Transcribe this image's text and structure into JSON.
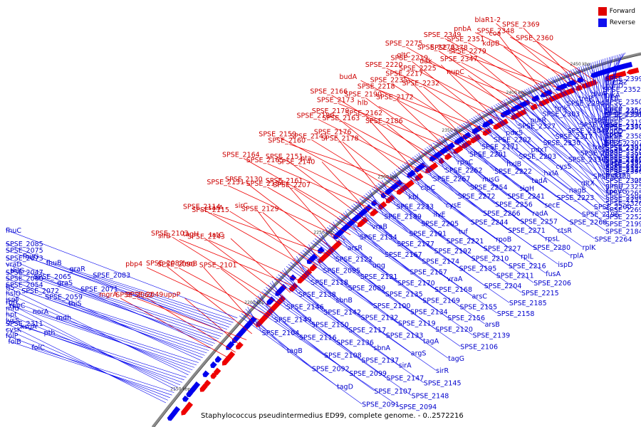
{
  "legend": [
    {
      "label": "Forward",
      "color": "#e00000"
    },
    {
      "label": "Reverse",
      "color": "#1010ee"
    }
  ],
  "caption": "Staphylococcus pseudintermedius ED99, complete genome. - 0..2572216",
  "colors": {
    "forward": "#ee0000",
    "reverse": "#0000ee",
    "backbone": "#888888"
  },
  "ticks": [
    "2150 kbp",
    "2200 kbp",
    "2250 kbp",
    "2300 kbp",
    "2350 kbp",
    "2400 kbp",
    "2450 kbp"
  ],
  "forward_labels": [
    "SPSE_2360",
    "coa",
    "pnbA",
    "SPSE_2369",
    "blaR1-2",
    "SPSE_2378",
    "kdpB",
    "SPSE_2351",
    "SPSE_2349",
    "SPSE_2348",
    "SPSE_2347",
    "gltC",
    "SPSE_2279",
    "SPSE_2276",
    "SPSE_2275",
    "nupC",
    "SPSE_2225",
    "SPSE_2220",
    "dak",
    "SPSE_2219",
    "SPSE_2218",
    "SPSE_2232",
    "SPSE_2235",
    "budA",
    "SPSE_2217",
    "hlb",
    "SPSE_2173",
    "SPSE_2172",
    "SPSE_2190",
    "SPSE_2166",
    "SPSE_2186",
    "SPSE_2163",
    "SPSE_2180",
    "SPSE_2162",
    "SPSE_2179",
    "SPSE_2160",
    "SPSE_2178",
    "SPSE_2141",
    "SPSE_2159",
    "SPSE_2176",
    "SPSE_2140",
    "SPSE_2165",
    "pta",
    "SPSE_2151",
    "SPSE_2164",
    "SPSE_2207",
    "SPSE_2194",
    "SPSE_2131",
    "SPSE_2161",
    "SPSE_2130",
    "SPSE_2115",
    "SPSE_2129",
    "sarA",
    "SPSE_2114",
    "sirC",
    "SPSE_2143",
    "sirB",
    "tatC",
    "tagH",
    "SPSE_2103",
    "SPSE_2101",
    "SPSE_2090",
    "pbp4",
    "feoB",
    "SPSE_2082",
    "SPSE_2062",
    "uppP",
    "SPSE_2049",
    "mgrA"
  ],
  "reverse_labels": [
    "SPSE_2399",
    "nikA",
    "SPSE_2402",
    "SPSE_2379",
    "blaZ-2",
    "SPSE_2367",
    "met82",
    "gltB",
    "SPSE_2331",
    "kdpE",
    "SPSE_2393",
    "SPSE_2386",
    "panD",
    "SPSE_2350",
    "ppdK",
    "spsN",
    "panB",
    "SPSE_2394",
    "SPSE_2352",
    "dnaX",
    "SPSE_2319",
    "panC",
    "SPSE_2395",
    "SPSE_2396",
    "glvA",
    "SPSE_2354",
    "SPSE_2380",
    "SPSE_2307",
    "SPSE_2320",
    "metG",
    "treR",
    "SPSE_2356",
    "kdpD",
    "SPSE_2381",
    "SPSE_2377",
    "SPSE_2328",
    "SPSE_2294",
    "ispE",
    "SPSE_2358",
    "SPSE_2359",
    "SPSE_2322",
    "glmU",
    "tmk",
    "SPSE_2300",
    "prs",
    "SPSE_2314",
    "treC",
    "spoVG",
    "SPSE_2303",
    "SPSE_2304",
    "treP",
    "gltD",
    "SPSE_2305",
    "SPSE_2306",
    "purR",
    "SPSE_2317",
    "SPSE_2323",
    "SPSE_2324",
    "SPSE_2325",
    "SPSE_2326",
    "SPSE_2327",
    "SPSE_2330",
    "SPSE_2336",
    "SPSE_2338",
    "SPSE_2265",
    "SPSE_2269",
    "pdxS",
    "pdxT",
    "cysS",
    "gltX",
    "SPSE_2255",
    "SPSE_2252",
    "SPSE_2202",
    "SPSE_2203",
    "hxlA",
    "nagB",
    "SPSE_2200",
    "SPSE_2199",
    "SPSE_2171",
    "hxlB",
    "tadA",
    "SPSE_2223",
    "SPSE_2196",
    "SPSE_2184",
    "SPSE_2201",
    "SPSE_2222",
    "sigH",
    "secE",
    "SPSE_2268",
    "SPSE_2264",
    "rpoC",
    "nusG",
    "SPSE_2241",
    "radA",
    "ctsR",
    "rplK",
    "SPSE_2262",
    "SPSE_2254",
    "SPSE_2256",
    "SPSE_2257",
    "rpsL",
    "rplA",
    "SPSE_2267",
    "SPSE_2272",
    "SPSE_2266",
    "SPSE_2271",
    "SPSE_2280",
    "ispD",
    "clpC",
    "cysE",
    "SPSE_2244",
    "rpoB",
    "rplL",
    "fusA",
    "kbl",
    "ilvE",
    "tuf",
    "SPSE_2227",
    "SPSE_2216",
    "SPSE_2206",
    "SPSE_2233",
    "SPSE_2205",
    "SPSE_2221",
    "SPSE_2210",
    "SPSE_2211",
    "SPSE_2215",
    "SPSE_2189",
    "SPSE_2191",
    "SPSE_2192",
    "SPSE_2195",
    "SPSE_2204",
    "SPSE_2185",
    "vraB",
    "SPSE_2177",
    "SPSE_2174",
    "vraA",
    "arsC",
    "SPSE_2158",
    "SPSE_2154",
    "SPSE_2167",
    "SPSE_2157",
    "SPSE_2168",
    "SPSE_2155",
    "arsB",
    "arsR",
    "ung",
    "SPSE_2170",
    "SPSE_2169",
    "SPSE_2156",
    "SPSE_2139",
    "SPSE_2122",
    "SPSE_2121",
    "SPSE_2135",
    "SPSE_2134",
    "SPSE_2120",
    "SPSE_2106",
    "SPSE_2095",
    "SPSE_2089",
    "SPSE_2100",
    "SPSE_2119",
    "tagA",
    "tagG",
    "SPSE_2118",
    "sbnB",
    "SPSE_2132",
    "SPSE_2133",
    "argS",
    "sirR",
    "SPSE_2138",
    "SPSE_2142",
    "SPSE_2117",
    "sbnA",
    "sirA",
    "SPSE_2145",
    "SPSE_2146",
    "SPSE_2150",
    "SPSE_2136",
    "SPSE_2137",
    "SPSE_2147",
    "SPSE_2148",
    "SPSE_2149",
    "SPSE_2116",
    "SPSE_2108",
    "SPSE_2099",
    "SPSE_2107",
    "SPSE_2094",
    "SPSE_2104",
    "tagB",
    "SPSE_2092",
    "tagD",
    "SPSE_2091",
    "fhuC",
    "SPSE_2083",
    "graR",
    "fhuB",
    "fhuG",
    "SPSE_2075",
    "SPSE_2085",
    "SPSE_2071",
    "graS",
    "SPSE_2065",
    "thiG",
    "vraD",
    "SPSE_2073",
    "thiS",
    "SPSE_2059",
    "SPSE_2072",
    "SPSE_2054",
    "SPSE_2060",
    "SPSE_2047",
    "mdh",
    "norA",
    "rpoC",
    "ispF",
    "hslO",
    "tjS",
    "pth",
    "ksgA",
    "lysS",
    "hpt",
    "mfd",
    "rplY",
    "folC",
    "folB",
    "folP",
    "cysK",
    "SPSE_2311"
  ]
}
